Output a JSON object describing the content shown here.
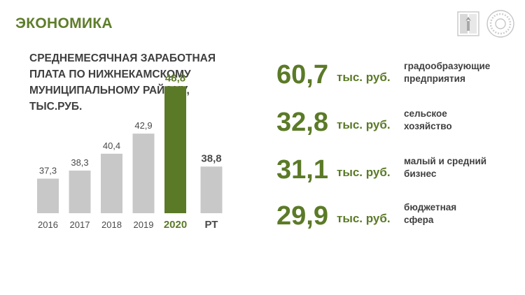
{
  "header": {
    "title": "ЭКОНОМИКА"
  },
  "chart_title_lines": [
    "СРЕДНЕМЕСЯЧНАЯ ЗАРАБОТНАЯ",
    "ПЛАТА ПО НИЖНЕКАМСКОМУ",
    "МУНИЦИПАЛЬНОМУ РАЙОНУ,",
    "ТЫС.РУБ."
  ],
  "chart_data": {
    "type": "bar",
    "categories": [
      "2016",
      "2017",
      "2018",
      "2019",
      "2020",
      "РТ"
    ],
    "values": [
      37.3,
      38.3,
      40.4,
      42.9,
      48.8,
      38.8
    ],
    "value_labels": [
      "37,3",
      "38,3",
      "40,4",
      "42,9",
      "48,8",
      "38,8"
    ],
    "highlight_index": 4,
    "highlight_color": "#5b7a27",
    "bar_color": "#c8c8c8",
    "grid": false,
    "legend": "none"
  },
  "stats": [
    {
      "value": "60,7",
      "unit": "тыс. руб.",
      "label": [
        "градообразующие",
        "предприятия"
      ]
    },
    {
      "value": "32,8",
      "unit": "тыс. руб.",
      "label": [
        "сельское",
        "хозяйство"
      ]
    },
    {
      "value": "31,1",
      "unit": "тыс. руб.",
      "label": [
        "малый и средний",
        "бизнес"
      ]
    },
    {
      "value": "29,9",
      "unit": "тыс. руб.",
      "label": [
        "бюджетная",
        "сфера"
      ]
    }
  ],
  "icons": [
    "emblem-icon",
    "round-seal-icon"
  ],
  "colors": {
    "accent": "#5b7a27",
    "text": "#3f3f3f",
    "bar": "#c8c8c8"
  }
}
